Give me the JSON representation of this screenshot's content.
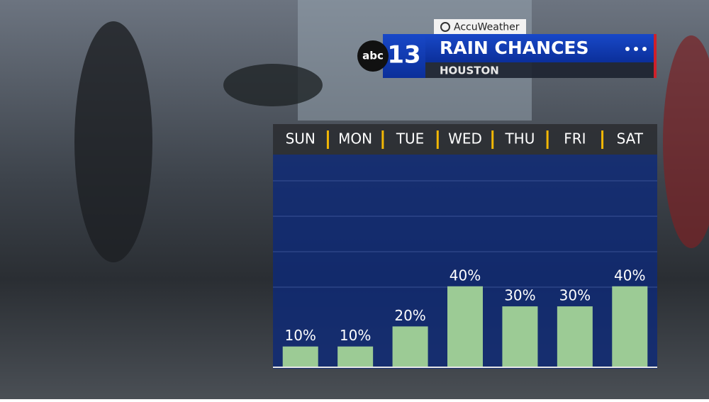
{
  "header": {
    "provider": "AccuWeather",
    "station": "abc",
    "channel": "13"
  },
  "chart_data": {
    "type": "bar",
    "title": "RAIN CHANCES",
    "subtitle": "HOUSTON",
    "categories": [
      "SUN",
      "MON",
      "TUE",
      "WED",
      "THU",
      "FRI",
      "SAT"
    ],
    "values": [
      10,
      10,
      20,
      40,
      30,
      30,
      40
    ],
    "value_labels": [
      "10%",
      "10%",
      "20%",
      "40%",
      "30%",
      "30%",
      "40%"
    ],
    "color": "#9ccb95",
    "ylim": [
      0,
      100
    ]
  }
}
